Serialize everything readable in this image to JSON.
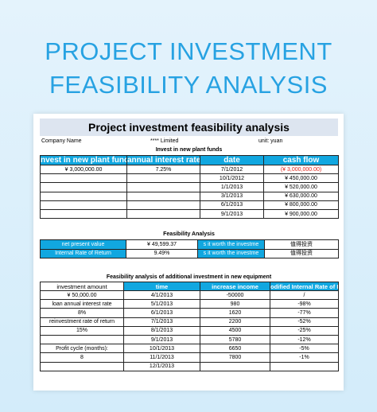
{
  "hero": {
    "line1": "PROJECT INVESTMENT",
    "line2": "FEASIBILITY ANALYSIS"
  },
  "sheet": {
    "title": "Project investment feasibility analysis",
    "company_label": "Company Name",
    "company_value": "**** Limited",
    "unit_label": "unit: yuan",
    "section1": {
      "title": "Invest in new plant funds",
      "headers": [
        "nvest in new plant funds",
        "annual interest rate",
        "date",
        "cash flow"
      ],
      "rows": [
        [
          "¥ 3,000,000.00",
          "7.25%",
          "7/1/2012",
          "(¥ 3,000,000.00)"
        ],
        [
          "",
          "",
          "10/1/2012",
          "¥ 450,000.00"
        ],
        [
          "",
          "",
          "1/1/2013",
          "¥ 520,000.00"
        ],
        [
          "",
          "",
          "3/1/2013",
          "¥ 630,000.00"
        ],
        [
          "",
          "",
          "6/1/2013",
          "¥ 800,000.00"
        ],
        [
          "",
          "",
          "9/1/2013",
          "¥ 900,000.00"
        ]
      ]
    },
    "section2": {
      "title": "Feasibility Analysis",
      "rows": [
        {
          "label": "net present value",
          "value": "¥ 49,599.37",
          "question": "s it worth the investme",
          "answer": "值得投资"
        },
        {
          "label": "Internal Rate of Return",
          "value": "9.49%",
          "question": "s it worth the investme",
          "answer": "值得投资"
        }
      ]
    },
    "section3": {
      "title": "Feasibility analysis of additional investment in new equipment",
      "headers": [
        "",
        "time",
        "increase income",
        "odified Internal Rate of Retur"
      ],
      "rows": [
        [
          "investment amount",
          "4/1/2013",
          "-50000",
          "/"
        ],
        [
          "¥ 50,000.00",
          "5/1/2013",
          "980",
          "-98%"
        ],
        [
          "loan annual interest rate",
          "6/1/2013",
          "1620",
          "-77%"
        ],
        [
          "8%",
          "7/1/2013",
          "2200",
          "-52%"
        ],
        [
          "reinvestment rate of return",
          "8/1/2013",
          "4500",
          "-25%"
        ],
        [
          "15%",
          "9/1/2013",
          "5780",
          "-12%"
        ],
        [
          "",
          "10/1/2013",
          "6650",
          "-5%"
        ],
        [
          "Profit cycle (months):",
          "11/1/2013",
          "7800",
          "-1%"
        ],
        [
          "8",
          "12/1/2013",
          "",
          ""
        ]
      ]
    }
  },
  "colors": {
    "accent": "#11a7e0",
    "hero": "#27a2e2",
    "negative": "#e0261b",
    "title_band": "#dde5f0"
  }
}
